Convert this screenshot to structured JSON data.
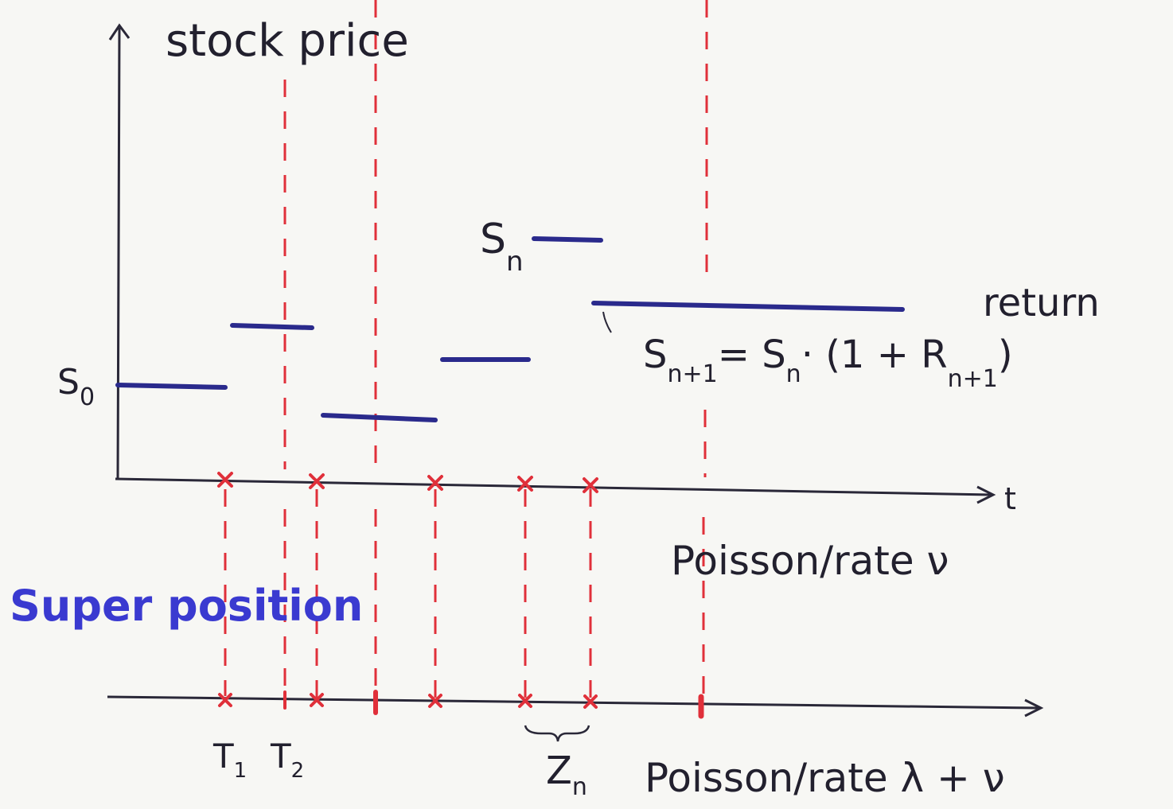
{
  "y_axis_label": "stock price",
  "x_axis_label": "t",
  "price_labels": [
    {
      "symbol": "S",
      "subscript": "0"
    },
    {
      "symbol": "S",
      "subscript": "n"
    }
  ],
  "return_label": "return",
  "formula": [
    {
      "text": "S",
      "sub": "n+1"
    },
    {
      "text": "= S",
      "sub": "n"
    },
    {
      "text": "· (1 + R",
      "sub": "n+1"
    },
    {
      "text": ")"
    }
  ],
  "process_labels": [
    "Poisson/rate ν",
    "Poisson/rate λ + ν"
  ],
  "superposition_label": "Super position",
  "time_labels": [
    {
      "symbol": "T",
      "subscript": "1"
    },
    {
      "symbol": "T",
      "subscript": "2"
    }
  ],
  "interarrival_label": {
    "symbol": "Z",
    "subscript": "n"
  }
}
